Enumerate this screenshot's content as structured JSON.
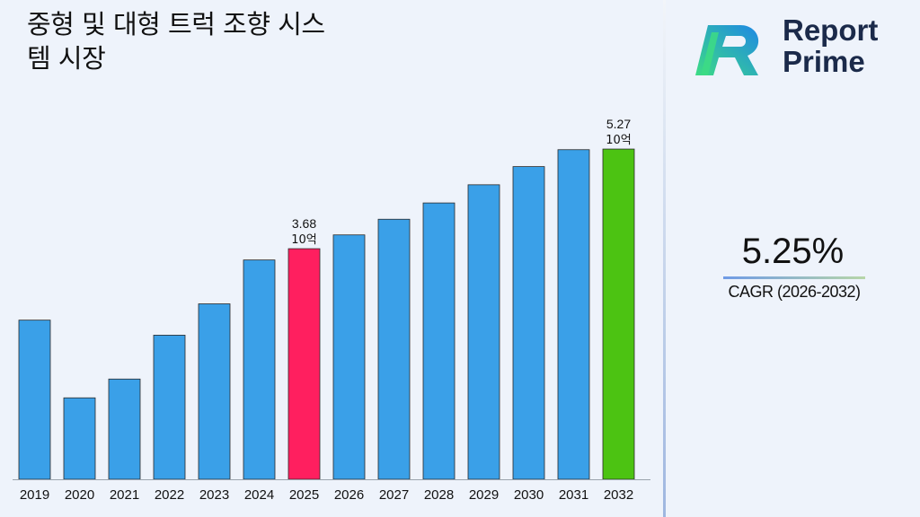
{
  "title_line1": "중형 및 대형 트럭 조향 시스",
  "title_line2": "템 시장",
  "logo": {
    "line1": "Report",
    "line2": "Prime"
  },
  "cagr": {
    "value": "5.25%",
    "label": "CAGR (2026-2032)"
  },
  "colors": {
    "default": "#3aa0e8",
    "highlight_2025": "#ff1f5f",
    "highlight_2032": "#4cc312",
    "logo_blue": "#1e88e5",
    "logo_green": "#3ddc84"
  },
  "chart_data": {
    "type": "bar",
    "categories": [
      "2019",
      "2020",
      "2021",
      "2022",
      "2023",
      "2024",
      "2025",
      "2026",
      "2027",
      "2028",
      "2029",
      "2030",
      "2031",
      "2032"
    ],
    "values": [
      2.54,
      1.3,
      1.6,
      2.3,
      2.8,
      3.5,
      3.68,
      3.9,
      4.15,
      4.41,
      4.7,
      4.99,
      5.26,
      5.27
    ],
    "ylim": [
      0,
      5.5
    ],
    "unit": "10억",
    "data_labels": {
      "6": "3.68",
      "13": "5.27"
    },
    "highlight": {
      "6": "#ff1f5f",
      "13": "#4cc312"
    },
    "title": "",
    "xlabel": "",
    "ylabel": ""
  }
}
